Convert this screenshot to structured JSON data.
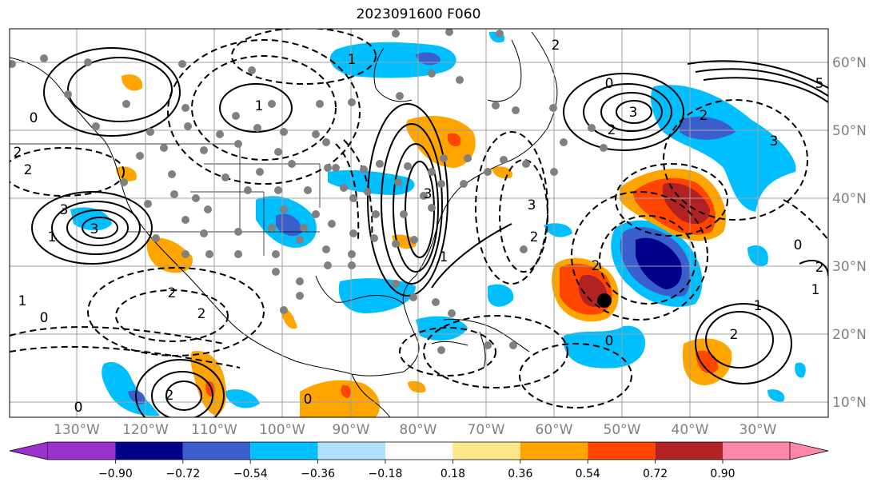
{
  "title": "2023091600 F060",
  "map": {
    "lon_labels": [
      "130°W",
      "120°W",
      "110°W",
      "100°W",
      "90°W",
      "80°W",
      "70°W",
      "60°W",
      "50°W",
      "40°W",
      "30°W"
    ],
    "lat_labels": [
      "60°N",
      "50°N",
      "40°N",
      "30°N",
      "20°N",
      "10°N"
    ],
    "contour_labels": [
      "2",
      "2",
      "1",
      "0",
      "1",
      "3",
      "3",
      "2",
      "0",
      "1",
      "2",
      "3",
      "3",
      "2",
      "1",
      "0",
      "2",
      "5",
      "3",
      "2",
      "1",
      "0",
      "2",
      "1",
      "2",
      "0",
      "0",
      "2",
      "3",
      "1",
      "2",
      "0",
      "2"
    ],
    "station_marker_color": "#808080",
    "storm_marker_color": "#000000"
  },
  "colorbar": {
    "ticks": [
      "−0.90",
      "−0.72",
      "−0.54",
      "−0.36",
      "−0.18",
      "0.18",
      "0.36",
      "0.54",
      "0.72",
      "0.90"
    ],
    "colors": [
      "#9932cc",
      "#00008b",
      "#3a5fcd",
      "#00bfff",
      "#b0e0fa",
      "#ffffff",
      "#ffe88a",
      "#ffa500",
      "#ff4500",
      "#b22222",
      "#ff88aa"
    ]
  },
  "colors": {
    "neg_strong": "#00008b",
    "neg_mid": "#3a5fcd",
    "neg_light": "#00bfff",
    "pos_light": "#ffa500",
    "pos_mid": "#ff4500",
    "pos_strong": "#b22222"
  }
}
